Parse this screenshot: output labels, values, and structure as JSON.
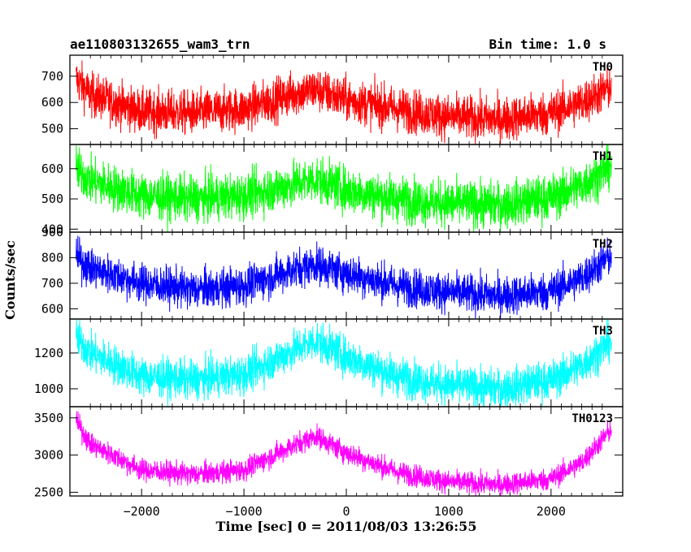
{
  "chart_data": {
    "type": "line",
    "title": "ae110803132655_wam3_trn",
    "bin_time": "Bin time: 1.0 s",
    "xlabel": "Time [sec] 0 = 2011/08/03 13:26:55",
    "ylabel": "Counts/sec",
    "xlim": [
      -2700,
      2700
    ],
    "x_ticks": [
      -2000,
      -1000,
      0,
      1000,
      2000
    ],
    "x_tick_labels": [
      "−2000",
      "−1000",
      "0",
      "1000",
      "2000"
    ],
    "x_range": [
      -2640,
      2590
    ],
    "grid": false,
    "legend": "none",
    "series": [
      {
        "name": "TH0",
        "color": "#ff0000",
        "ylim": [
          440,
          780
        ],
        "y_ticks": [
          500,
          600,
          700
        ],
        "noise": 42,
        "trend": [
          [
            -2640,
            690
          ],
          [
            -2500,
            630
          ],
          [
            -2000,
            565
          ],
          [
            -1500,
            560
          ],
          [
            -1000,
            575
          ],
          [
            -500,
            635
          ],
          [
            -300,
            650
          ],
          [
            0,
            610
          ],
          [
            500,
            575
          ],
          [
            1000,
            545
          ],
          [
            1500,
            535
          ],
          [
            2000,
            560
          ],
          [
            2300,
            600
          ],
          [
            2590,
            660
          ]
        ]
      },
      {
        "name": "TH1",
        "color": "#00ff00",
        "ylim": [
          390,
          680
        ],
        "y_ticks": [
          400,
          500,
          600
        ],
        "noise": 38,
        "trend": [
          [
            -2640,
            600
          ],
          [
            -2500,
            560
          ],
          [
            -2000,
            510
          ],
          [
            -1500,
            500
          ],
          [
            -1000,
            510
          ],
          [
            -500,
            550
          ],
          [
            -300,
            565
          ],
          [
            0,
            530
          ],
          [
            500,
            500
          ],
          [
            1000,
            485
          ],
          [
            1500,
            480
          ],
          [
            2000,
            505
          ],
          [
            2300,
            545
          ],
          [
            2590,
            610
          ]
        ]
      },
      {
        "name": "TH2",
        "color": "#0000ff",
        "ylim": [
          560,
          900
        ],
        "y_ticks": [
          600,
          700,
          800,
          900
        ],
        "noise": 38,
        "trend": [
          [
            -2640,
            800
          ],
          [
            -2500,
            760
          ],
          [
            -2000,
            700
          ],
          [
            -1500,
            675
          ],
          [
            -1000,
            690
          ],
          [
            -500,
            755
          ],
          [
            -300,
            775
          ],
          [
            0,
            740
          ],
          [
            500,
            690
          ],
          [
            1000,
            665
          ],
          [
            1500,
            650
          ],
          [
            2000,
            670
          ],
          [
            2300,
            720
          ],
          [
            2590,
            810
          ]
        ]
      },
      {
        "name": "TH3",
        "color": "#00ffff",
        "ylim": [
          900,
          1390
        ],
        "y_ticks": [
          1000,
          1200
        ],
        "noise": 55,
        "trend": [
          [
            -2640,
            1290
          ],
          [
            -2500,
            1200
          ],
          [
            -2000,
            1070
          ],
          [
            -1500,
            1050
          ],
          [
            -1000,
            1080
          ],
          [
            -500,
            1220
          ],
          [
            -300,
            1270
          ],
          [
            0,
            1180
          ],
          [
            500,
            1070
          ],
          [
            1000,
            1020
          ],
          [
            1500,
            1000
          ],
          [
            2000,
            1050
          ],
          [
            2300,
            1130
          ],
          [
            2590,
            1270
          ]
        ]
      },
      {
        "name": "TH0123",
        "color": "#ff00ff",
        "ylim": [
          2450,
          3650
        ],
        "y_ticks": [
          2500,
          3000,
          3500
        ],
        "noise": 75,
        "trend": [
          [
            -2640,
            3450
          ],
          [
            -2500,
            3150
          ],
          [
            -2000,
            2800
          ],
          [
            -1500,
            2740
          ],
          [
            -1000,
            2800
          ],
          [
            -500,
            3140
          ],
          [
            -300,
            3260
          ],
          [
            0,
            3030
          ],
          [
            500,
            2770
          ],
          [
            1000,
            2640
          ],
          [
            1500,
            2600
          ],
          [
            2000,
            2680
          ],
          [
            2300,
            2900
          ],
          [
            2590,
            3350
          ]
        ]
      }
    ]
  }
}
